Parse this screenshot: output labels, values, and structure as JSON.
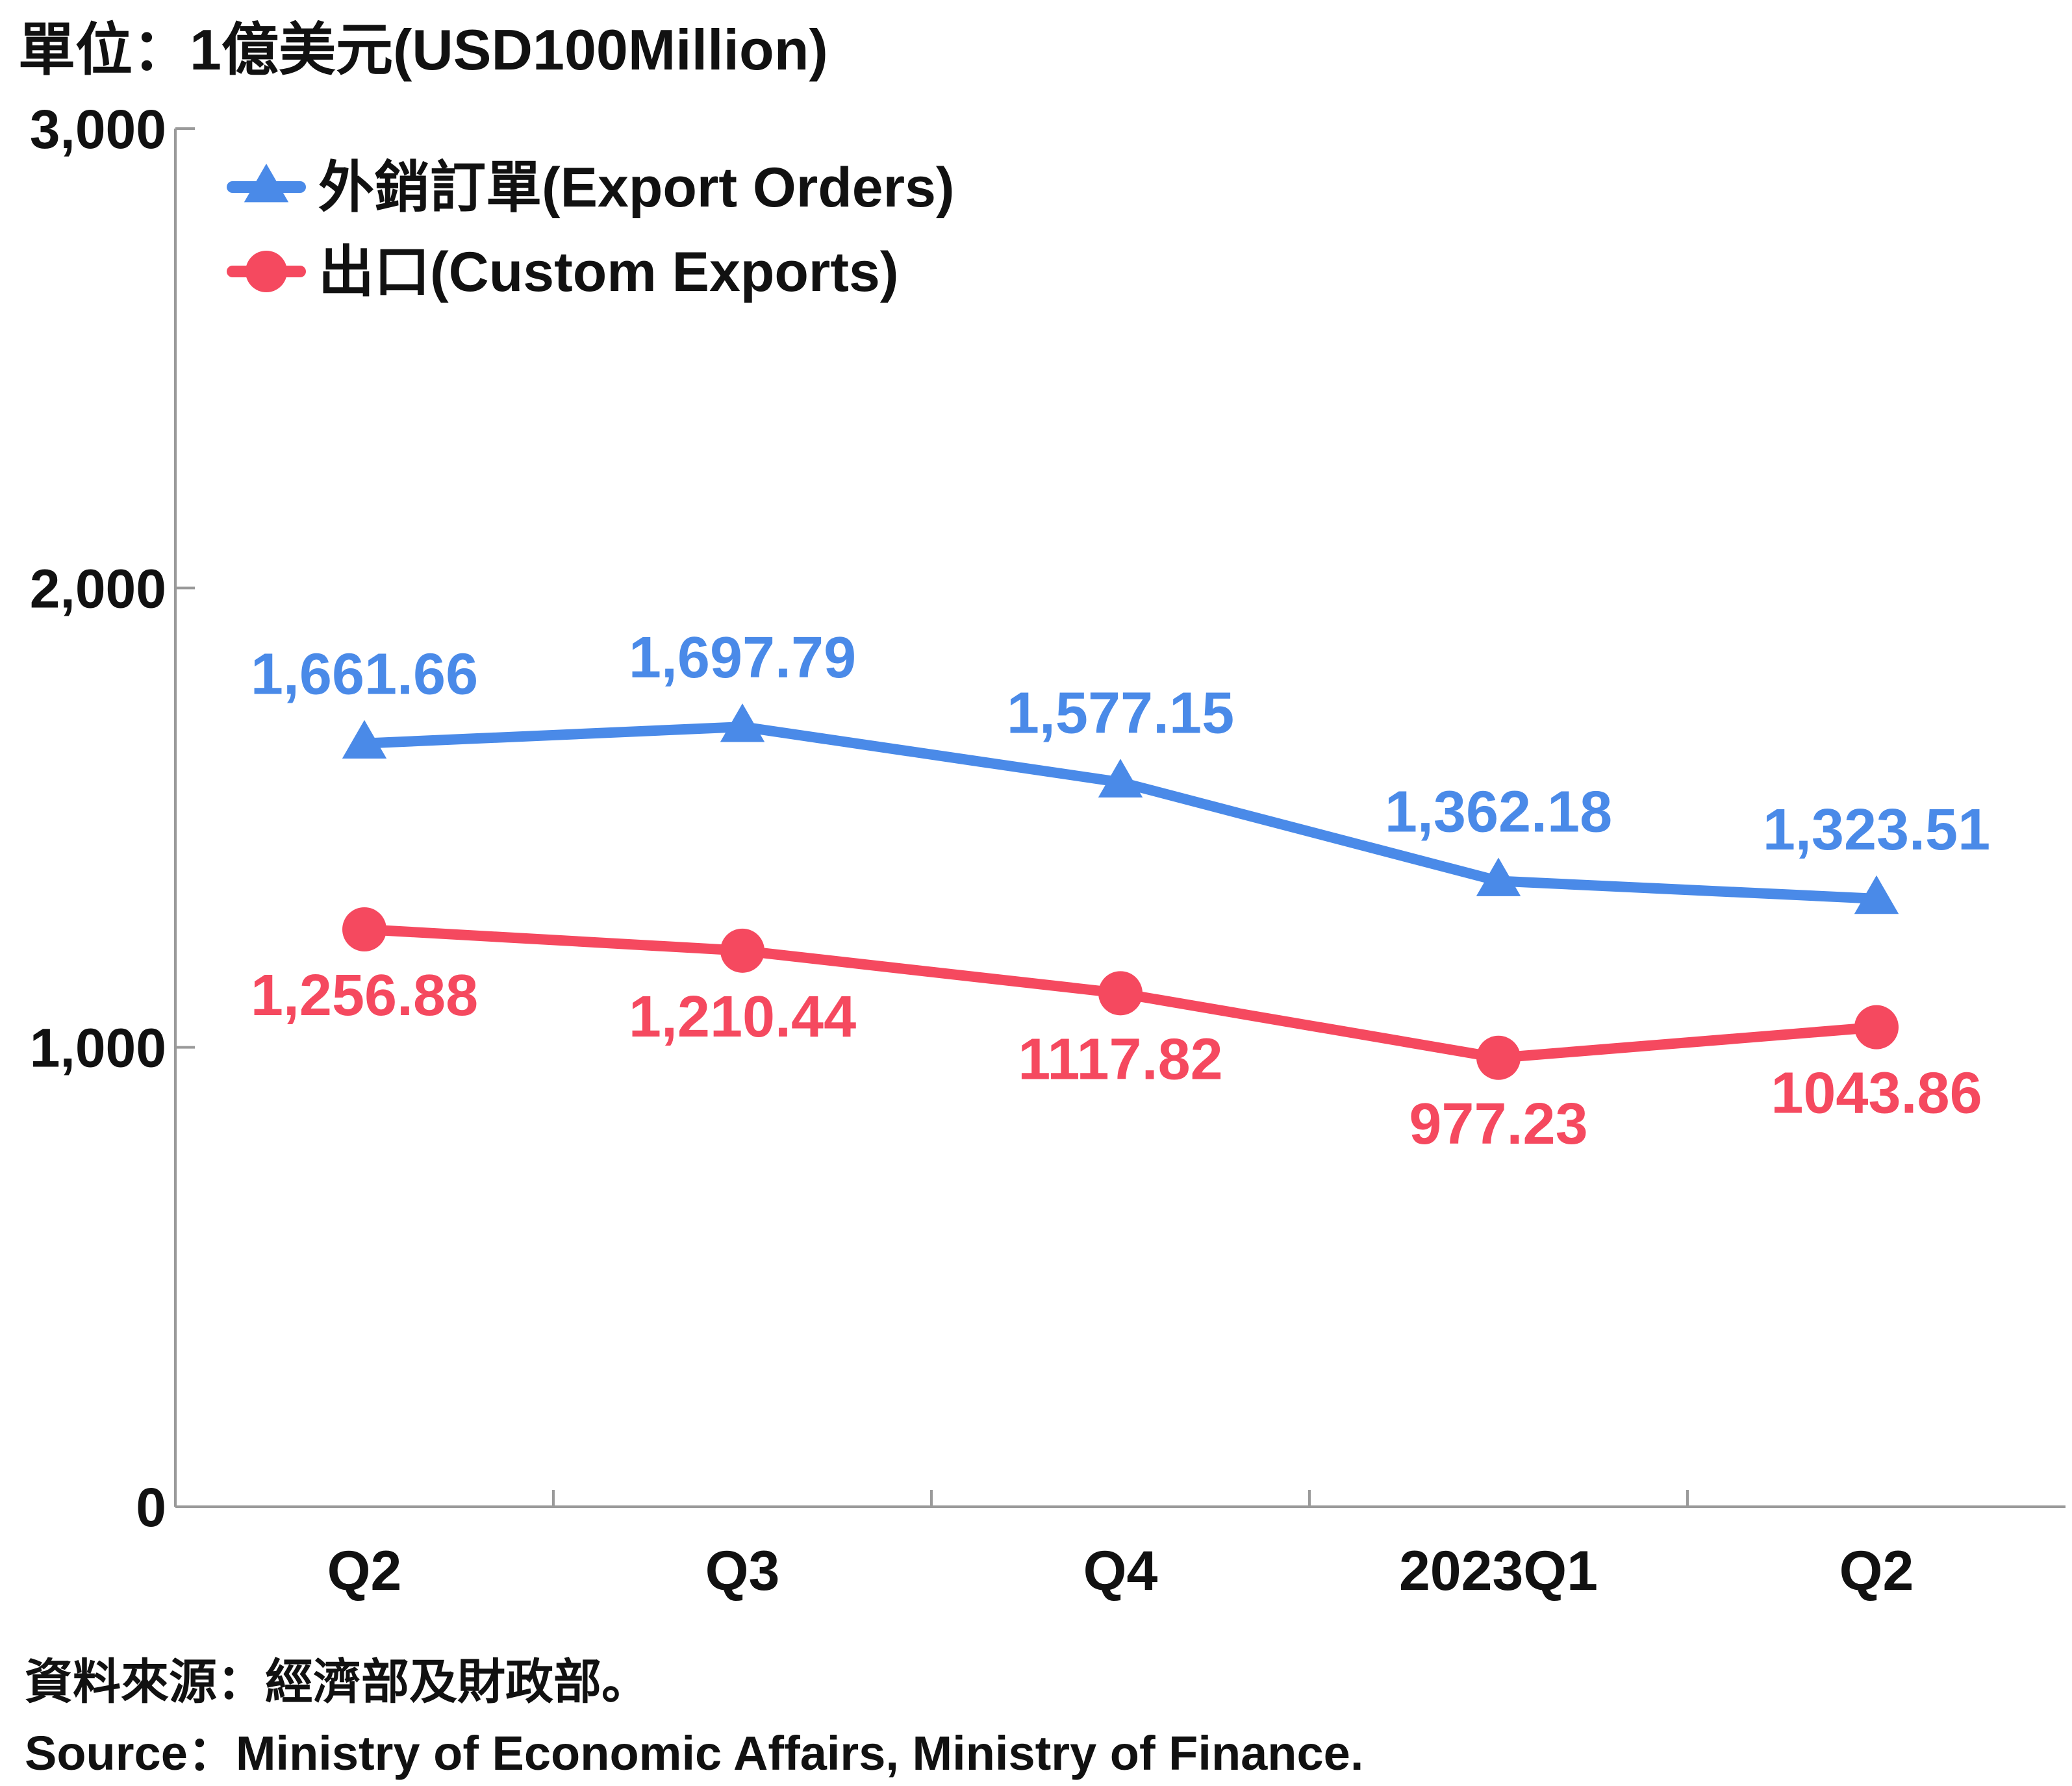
{
  "header": {
    "unit": "單位：1億美元(USD100Million)"
  },
  "footer": {
    "source_zh": "資料來源：經濟部及財政部。",
    "source_en": "Source：Ministry of Economic Affairs, Ministry of Finance."
  },
  "chart_data": {
    "type": "line",
    "categories": [
      "Q2",
      "Q3",
      "Q4",
      "2023Q1",
      "Q2"
    ],
    "ylim": [
      0,
      3000
    ],
    "yticks": [
      0,
      1000,
      2000,
      3000
    ],
    "ytick_labels": [
      "0",
      "1,000",
      "2,000",
      "3,000"
    ],
    "grid": false,
    "legend_position": "top-left",
    "series": [
      {
        "name": "外銷訂單(Export Orders)",
        "values": [
          1661.66,
          1697.79,
          1577.15,
          1362.18,
          1323.51
        ],
        "labels": [
          "1,661.66",
          "1,697.79",
          "1,577.15",
          "1,362.18",
          "1,323.51"
        ],
        "color": "#4A8AE8",
        "marker": "triangle",
        "label_position": "above"
      },
      {
        "name": "出口(Custom Exports)",
        "values": [
          1256.88,
          1210.44,
          1117.82,
          977.23,
          1043.86
        ],
        "labels": [
          "1,256.88",
          "1,210.44",
          "1117.82",
          "977.23",
          "1043.86"
        ],
        "color": "#F5495F",
        "marker": "circle",
        "label_position": "below"
      }
    ]
  }
}
